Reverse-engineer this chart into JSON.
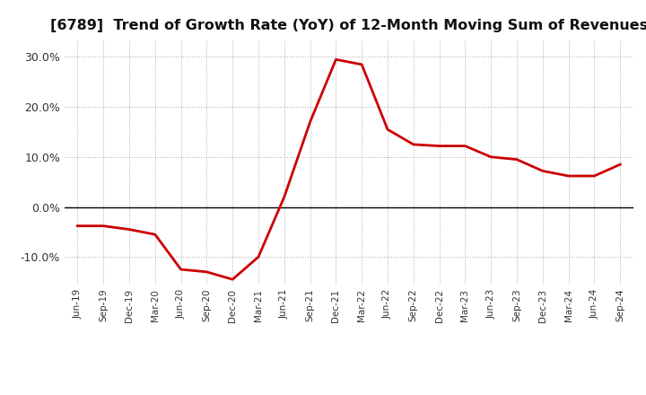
{
  "title": "[6789]  Trend of Growth Rate (YoY) of 12-Month Moving Sum of Revenues",
  "title_fontsize": 11.5,
  "line_color": "#CC0000",
  "line_width": 2.0,
  "background_color": "#FFFFFF",
  "plot_bg_color": "#FFFFFF",
  "grid_color": "#AAAAAA",
  "zero_line_color": "#000000",
  "ylim": [
    -0.155,
    0.335
  ],
  "yticks": [
    -0.1,
    0.0,
    0.1,
    0.2,
    0.3
  ],
  "labels": [
    "Jun-19",
    "Sep-19",
    "Dec-19",
    "Mar-20",
    "Jun-20",
    "Sep-20",
    "Dec-20",
    "Mar-21",
    "Jun-21",
    "Sep-21",
    "Dec-21",
    "Mar-22",
    "Jun-22",
    "Sep-22",
    "Dec-22",
    "Mar-23",
    "Jun-23",
    "Sep-23",
    "Dec-23",
    "Mar-24",
    "Jun-24",
    "Sep-24"
  ],
  "values": [
    -0.038,
    -0.038,
    -0.045,
    -0.055,
    -0.125,
    -0.13,
    -0.145,
    -0.1,
    0.02,
    0.17,
    0.295,
    0.285,
    0.155,
    0.125,
    0.122,
    0.122,
    0.1,
    0.095,
    0.072,
    0.062,
    0.062,
    0.085
  ]
}
